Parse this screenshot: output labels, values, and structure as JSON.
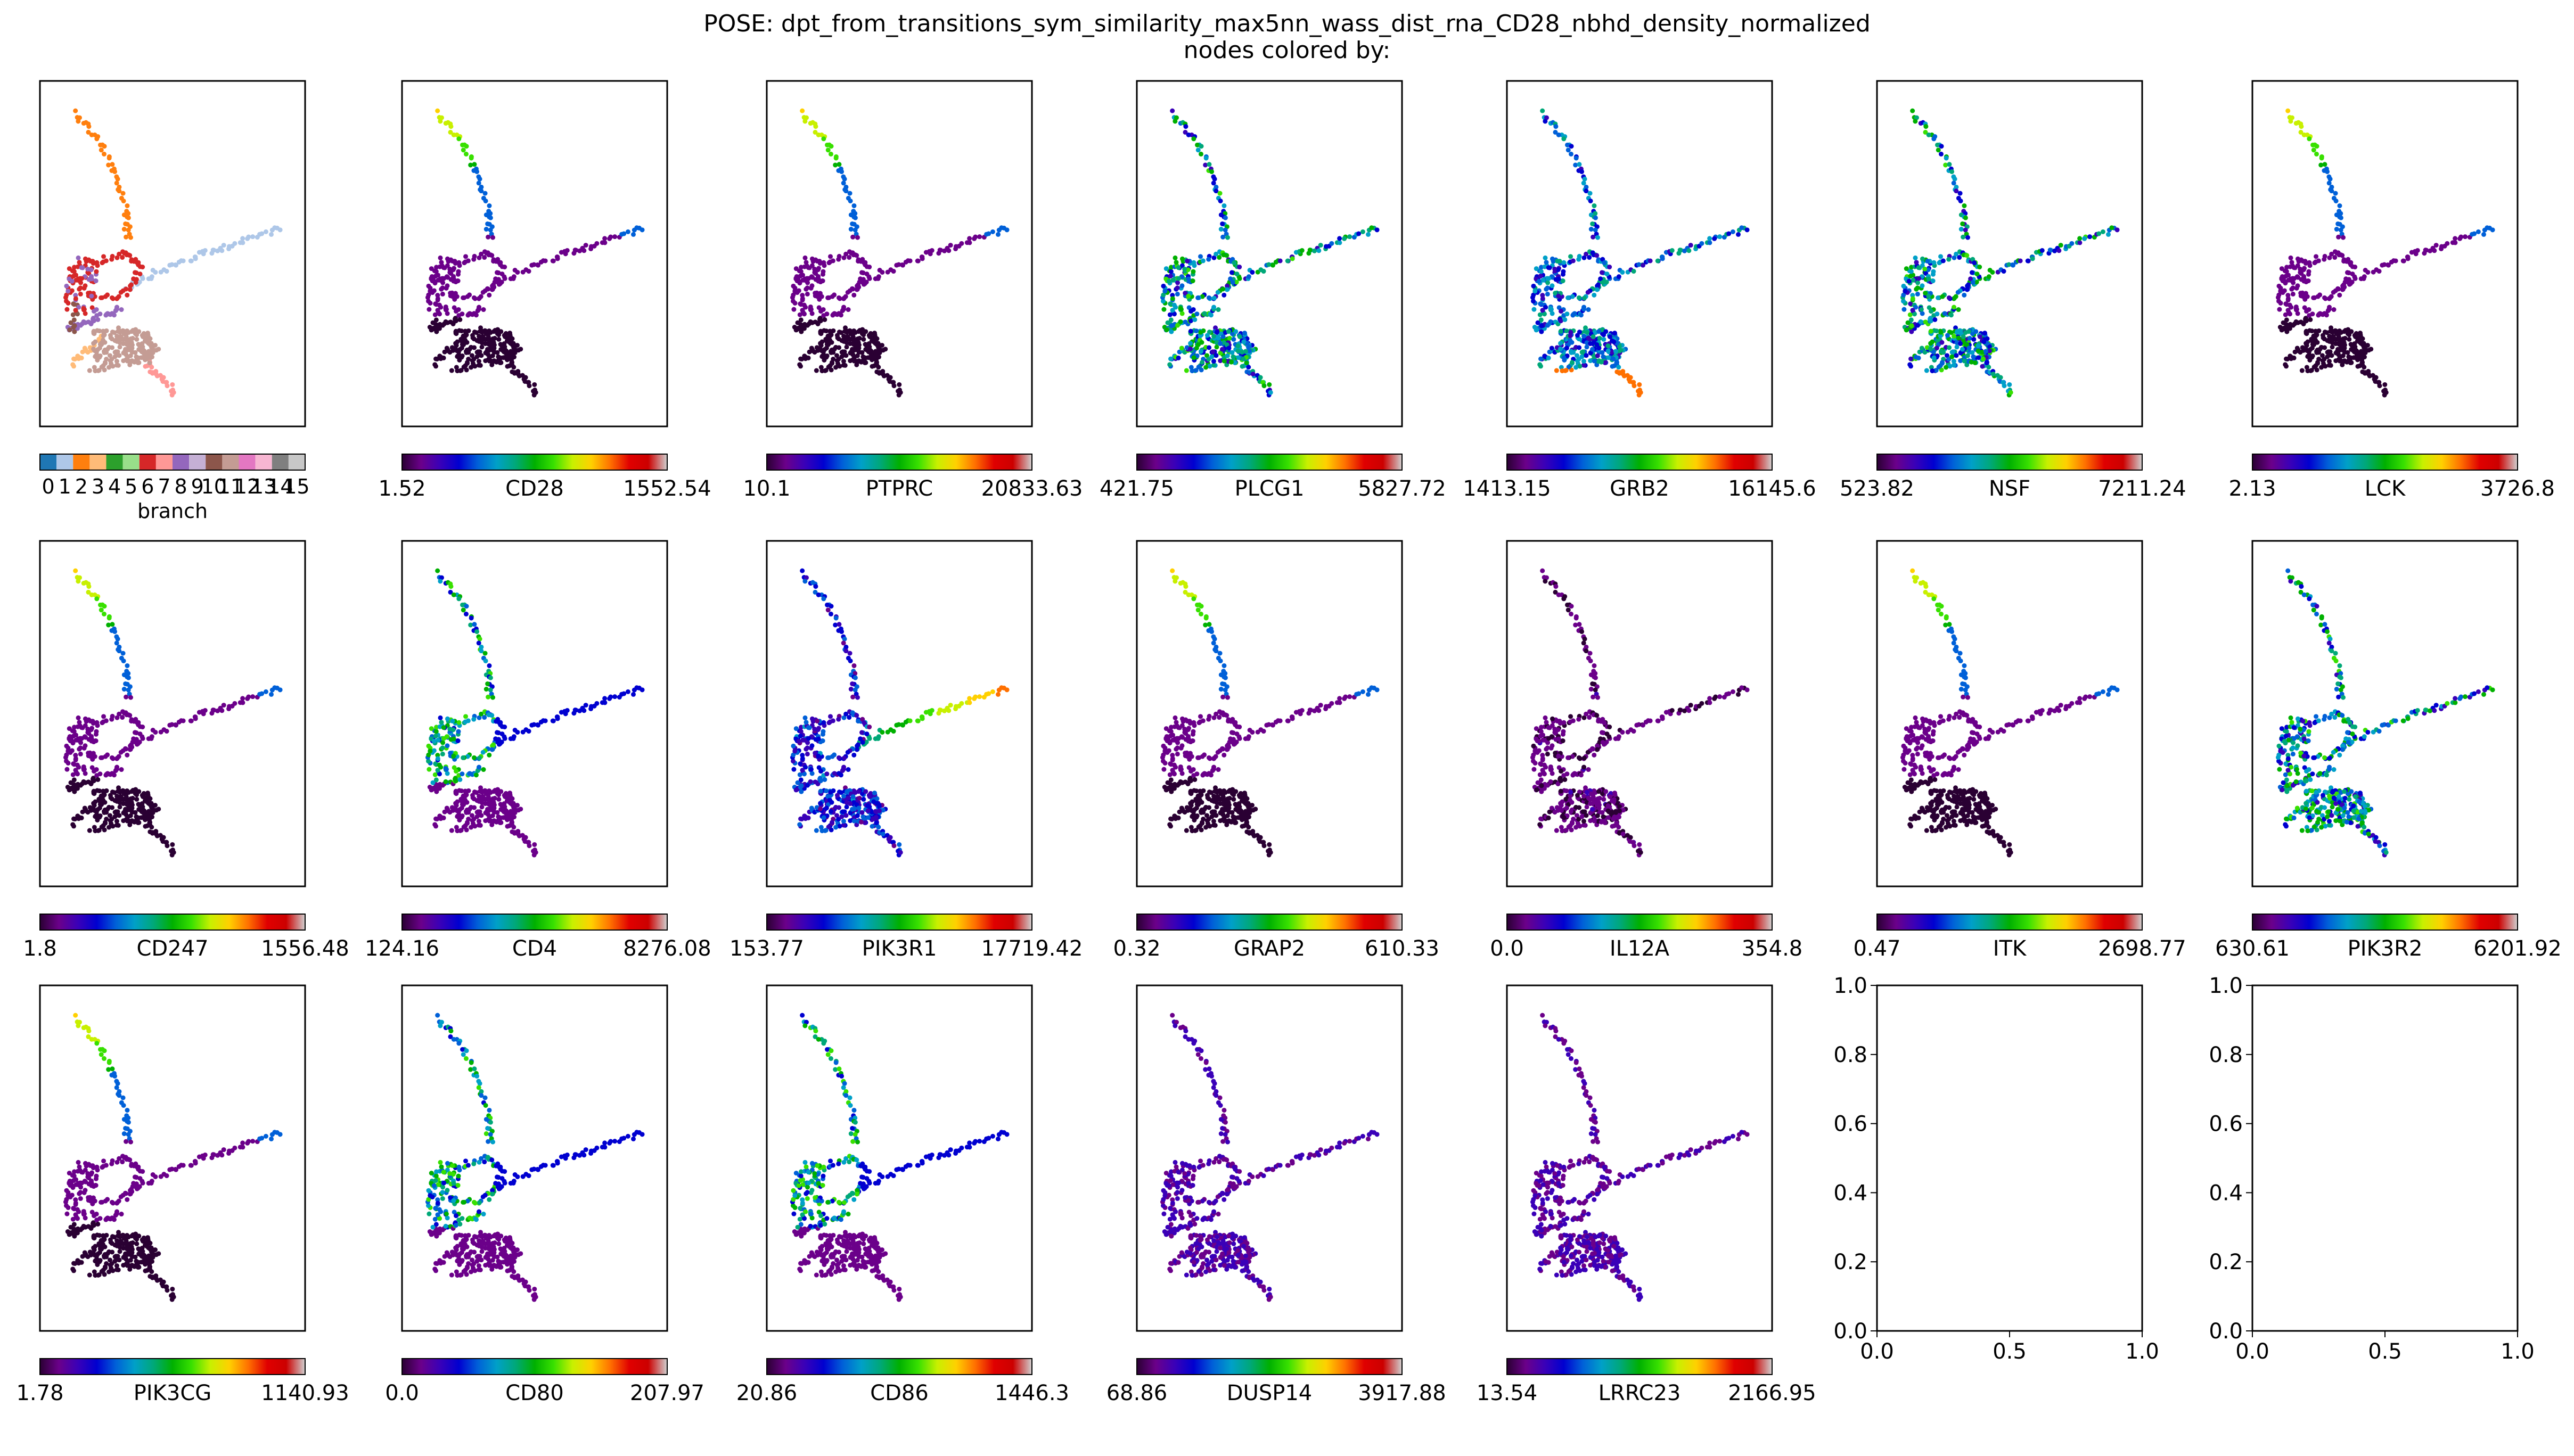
{
  "title_line1": "POSE: dpt_from_transitions_sym_similarity_max5nn_wass_dist_rna_CD28_nbhd_density_normalized",
  "title_line2": "nodes colored by:",
  "branch_colors": [
    "#1f77b4",
    "#aec7e8",
    "#ff7f0e",
    "#ffbb78",
    "#2ca02c",
    "#98df8a",
    "#d62728",
    "#ff9896",
    "#9467bd",
    "#c5b0d5",
    "#8c564b",
    "#c49c94",
    "#e377c2",
    "#f7b6d2",
    "#7f7f7f",
    "#c7c7c7"
  ],
  "colormap": [
    "#2a0033",
    "#6b008a",
    "#3a00b8",
    "#0000d0",
    "#0060d8",
    "#00a0c8",
    "#00a878",
    "#00b000",
    "#38e000",
    "#c8f000",
    "#ffd000",
    "#ff7000",
    "#e00000",
    "#cc0000",
    "#d0d0d0"
  ],
  "chart_data": [
    {
      "type": "scatter",
      "label": "branch",
      "categorical": true,
      "ticks": [
        "0",
        "1",
        "2",
        "3",
        "4",
        "5",
        "6",
        "7",
        "8",
        "9",
        "10",
        "11",
        "12",
        "13",
        "14",
        "15"
      ]
    },
    {
      "type": "scatter",
      "label": "CD28",
      "min": "1.52",
      "max": "1552.54",
      "pattern": "tip"
    },
    {
      "type": "scatter",
      "label": "PTPRC",
      "min": "10.1",
      "max": "20833.63",
      "pattern": "tip"
    },
    {
      "type": "scatter",
      "label": "PLCG1",
      "min": "421.75",
      "max": "5827.72",
      "pattern": "mixed"
    },
    {
      "type": "scatter",
      "label": "GRB2",
      "min": "1413.15",
      "max": "16145.6",
      "pattern": "tail"
    },
    {
      "type": "scatter",
      "label": "NSF",
      "min": "523.82",
      "max": "7211.24",
      "pattern": "mixed"
    },
    {
      "type": "scatter",
      "label": "LCK",
      "min": "2.13",
      "max": "3726.8",
      "pattern": "tip"
    },
    {
      "type": "scatter",
      "label": "CD247",
      "min": "1.8",
      "max": "1556.48",
      "pattern": "tip"
    },
    {
      "type": "scatter",
      "label": "CD4",
      "min": "124.16",
      "max": "8276.08",
      "pattern": "arm"
    },
    {
      "type": "scatter",
      "label": "PIK3R1",
      "min": "153.77",
      "max": "17719.42",
      "pattern": "east"
    },
    {
      "type": "scatter",
      "label": "GRAP2",
      "min": "0.32",
      "max": "610.33",
      "pattern": "tip"
    },
    {
      "type": "scatter",
      "label": "IL12A",
      "min": "0.0",
      "max": "354.8",
      "pattern": "dark"
    },
    {
      "type": "scatter",
      "label": "ITK",
      "min": "0.47",
      "max": "2698.77",
      "pattern": "tip"
    },
    {
      "type": "scatter",
      "label": "PIK3R2",
      "min": "630.61",
      "max": "6201.92",
      "pattern": "mixed"
    },
    {
      "type": "scatter",
      "label": "PIK3CG",
      "min": "1.78",
      "max": "1140.93",
      "pattern": "tip"
    },
    {
      "type": "scatter",
      "label": "CD80",
      "min": "0.0",
      "max": "207.97",
      "pattern": "arm"
    },
    {
      "type": "scatter",
      "label": "CD86",
      "min": "20.86",
      "max": "1446.3",
      "pattern": "arm"
    },
    {
      "type": "scatter",
      "label": "DUSP14",
      "min": "68.86",
      "max": "3917.88",
      "pattern": "low"
    },
    {
      "type": "scatter",
      "label": "LRRC23",
      "min": "13.54",
      "max": "2166.95",
      "pattern": "low"
    },
    {
      "type": "empty",
      "xlim": [
        0.0,
        1.0
      ],
      "ylim": [
        0.0,
        1.0
      ],
      "xticks": [
        "0.0",
        "0.5",
        "1.0"
      ],
      "yticks": [
        "0.0",
        "0.2",
        "0.4",
        "0.6",
        "0.8",
        "1.0"
      ]
    },
    {
      "type": "empty",
      "xlim": [
        0.0,
        1.0
      ],
      "ylim": [
        0.0,
        1.0
      ],
      "xticks": [
        "0.0",
        "0.5",
        "1.0"
      ],
      "yticks": [
        "0.0",
        "0.2",
        "0.4",
        "0.6",
        "0.8",
        "1.0"
      ]
    }
  ]
}
